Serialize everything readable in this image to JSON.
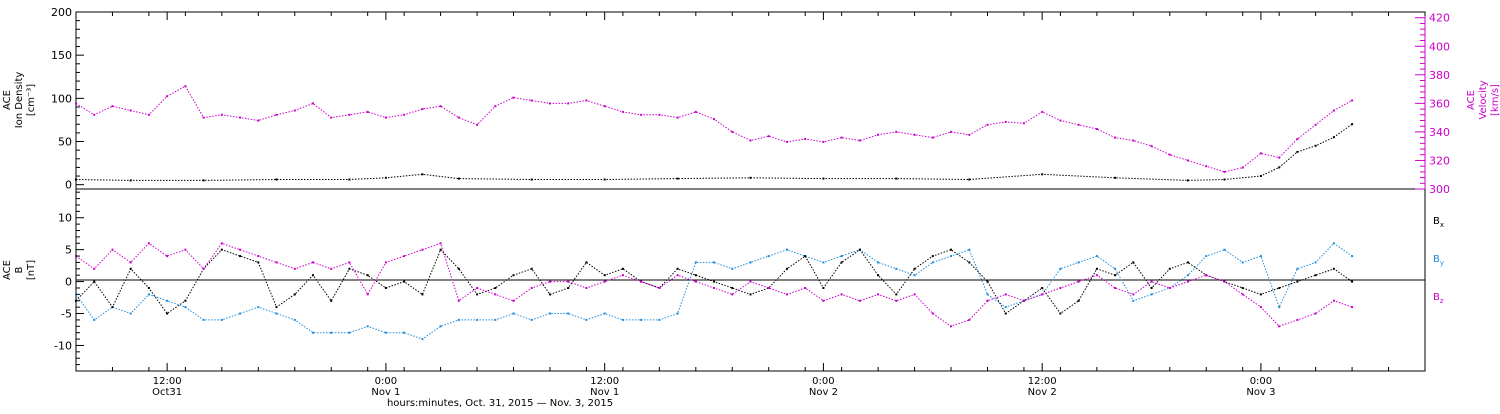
{
  "colors": {
    "density": "#000000",
    "velocity": "#cc00cc",
    "bx": "#000000",
    "by": "#1f8ddb",
    "bz": "#cc00cc",
    "axis": "#000000"
  },
  "top_panel": {
    "left_label": [
      "ACE",
      "Ion Density",
      "[cm⁻³]"
    ],
    "right_label": [
      "ACE",
      "Velocity",
      "[km/s]"
    ]
  },
  "bottom_panel": {
    "left_label": [
      "ACE",
      "B",
      "[nT]"
    ],
    "legend": [
      "Bx",
      "By",
      "Bz"
    ]
  },
  "xaxis": {
    "ticks": [
      {
        "t": 12,
        "line1": "12:00",
        "line2": "Oct31"
      },
      {
        "t": 24,
        "line1": "0:00",
        "line2": "Nov 1"
      },
      {
        "t": 36,
        "line1": "12:00",
        "line2": "Nov 1"
      },
      {
        "t": 48,
        "line1": "0:00",
        "line2": "Nov 2"
      },
      {
        "t": 60,
        "line1": "12:00",
        "line2": "Nov 2"
      },
      {
        "t": 72,
        "line1": "0:00",
        "line2": "Nov 3"
      }
    ],
    "title": "hours:minutes, Oct. 31, 2015 — Nov.  3, 2015"
  },
  "chart_data": [
    {
      "type": "scatter",
      "panel": "top",
      "x_unit": "hours since Oct 31 2015 00:00",
      "xlim": [
        7.0,
        81.0
      ],
      "left_axis": {
        "label": "ACE Ion Density [cm⁻³]",
        "ylim": [
          -5,
          200
        ],
        "ticks": [
          0,
          50,
          100,
          150,
          200
        ]
      },
      "right_axis": {
        "label": "ACE Velocity [km/s]",
        "ylim": [
          300,
          424
        ],
        "ticks": [
          300,
          320,
          340,
          360,
          380,
          400,
          420
        ]
      },
      "series": [
        {
          "name": "Ion Density",
          "axis": "left",
          "color": "#000000",
          "x": [
            7,
            10,
            14,
            18,
            22,
            24,
            26,
            28,
            32,
            36,
            40,
            44,
            48,
            52,
            56,
            60,
            64,
            68,
            70,
            72,
            73,
            74,
            75,
            76,
            77
          ],
          "y": [
            6,
            5,
            5,
            6,
            6,
            8,
            12,
            7,
            6,
            6,
            7,
            8,
            7,
            7,
            6,
            12,
            8,
            5,
            6,
            10,
            20,
            38,
            45,
            55,
            70
          ]
        },
        {
          "name": "Velocity",
          "axis": "right",
          "color": "#cc00cc",
          "x": [
            7,
            8,
            9,
            10,
            11,
            12,
            13,
            14,
            15,
            16,
            17,
            18,
            19,
            20,
            21,
            22,
            23,
            24,
            25,
            26,
            27,
            28,
            29,
            30,
            31,
            32,
            33,
            34,
            35,
            36,
            37,
            38,
            39,
            40,
            41,
            42,
            43,
            44,
            45,
            46,
            47,
            48,
            49,
            50,
            51,
            52,
            53,
            54,
            55,
            56,
            57,
            58,
            59,
            60,
            61,
            62,
            63,
            64,
            65,
            66,
            67,
            68,
            69,
            70,
            71,
            72,
            73,
            74,
            75,
            76,
            77
          ],
          "y": [
            360,
            352,
            358,
            355,
            352,
            365,
            372,
            350,
            352,
            350,
            348,
            352,
            355,
            360,
            350,
            352,
            354,
            350,
            352,
            356,
            358,
            350,
            345,
            358,
            364,
            362,
            360,
            360,
            362,
            358,
            354,
            352,
            352,
            350,
            354,
            349,
            340,
            334,
            337,
            333,
            335,
            333,
            336,
            334,
            338,
            340,
            338,
            336,
            340,
            338,
            345,
            347,
            346,
            354,
            348,
            345,
            342,
            336,
            334,
            330,
            324,
            320,
            316,
            312,
            315,
            325,
            322,
            335,
            345,
            355,
            362
          ]
        }
      ]
    },
    {
      "type": "scatter",
      "panel": "bottom",
      "x_unit": "hours since Oct 31 2015 00:00",
      "xlim": [
        7.0,
        81.0
      ],
      "ylabel": "ACE B [nT]",
      "ylim": [
        -14,
        14.5
      ],
      "yticks": [
        -10,
        -5,
        0,
        5,
        10
      ],
      "zero_line": true,
      "series": [
        {
          "name": "Bx",
          "color": "#000000",
          "x": [
            7,
            8,
            9,
            10,
            11,
            12,
            13,
            14,
            15,
            16,
            17,
            18,
            19,
            20,
            21,
            22,
            23,
            24,
            25,
            26,
            27,
            28,
            29,
            30,
            31,
            32,
            33,
            34,
            35,
            36,
            37,
            38,
            39,
            40,
            41,
            42,
            43,
            44,
            45,
            46,
            47,
            48,
            49,
            50,
            51,
            52,
            53,
            54,
            55,
            56,
            57,
            58,
            59,
            60,
            61,
            62,
            63,
            64,
            65,
            66,
            67,
            68,
            69,
            70,
            71,
            72,
            73,
            74,
            75,
            76,
            77
          ],
          "y": [
            -3,
            0,
            -4,
            2,
            -1,
            -5,
            -3,
            2,
            5,
            4,
            3,
            -4,
            -2,
            1,
            -3,
            2,
            1,
            -1,
            0,
            -2,
            5,
            2,
            -2,
            -1,
            1,
            2,
            -2,
            -1,
            3,
            1,
            2,
            0,
            -1,
            2,
            1,
            0,
            -1,
            -2,
            -1,
            2,
            4,
            -1,
            3,
            5,
            1,
            -2,
            2,
            4,
            5,
            3,
            0,
            -5,
            -3,
            -1,
            -5,
            -3,
            2,
            1,
            3,
            -1,
            2,
            3,
            1,
            0,
            -1,
            -2,
            -1,
            0,
            1,
            2,
            0
          ]
        },
        {
          "name": "By",
          "color": "#1f8ddb",
          "x": [
            7,
            8,
            9,
            10,
            11,
            12,
            13,
            14,
            15,
            16,
            17,
            18,
            19,
            20,
            21,
            22,
            23,
            24,
            25,
            26,
            27,
            28,
            29,
            30,
            31,
            32,
            33,
            34,
            35,
            36,
            37,
            38,
            39,
            40,
            41,
            42,
            43,
            44,
            45,
            46,
            47,
            48,
            49,
            50,
            51,
            52,
            53,
            54,
            55,
            56,
            57,
            58,
            59,
            60,
            61,
            62,
            63,
            64,
            65,
            66,
            67,
            68,
            69,
            70,
            71,
            72,
            73,
            74,
            75,
            76,
            77
          ],
          "y": [
            -2,
            -6,
            -4,
            -5,
            -2,
            -3,
            -4,
            -6,
            -6,
            -5,
            -4,
            -5,
            -6,
            -8,
            -8,
            -8,
            -7,
            -8,
            -8,
            -9,
            -7,
            -6,
            -6,
            -6,
            -5,
            -6,
            -5,
            -5,
            -6,
            -5,
            -6,
            -6,
            -6,
            -5,
            3,
            3,
            2,
            3,
            4,
            5,
            4,
            3,
            4,
            5,
            3,
            2,
            1,
            3,
            4,
            5,
            -2,
            -4,
            -3,
            -2,
            2,
            3,
            4,
            2,
            -3,
            -2,
            -1,
            1,
            4,
            5,
            3,
            4,
            -4,
            2,
            3,
            6,
            4
          ]
        },
        {
          "name": "Bz",
          "color": "#cc00cc",
          "x": [
            7,
            8,
            9,
            10,
            11,
            12,
            13,
            14,
            15,
            16,
            17,
            18,
            19,
            20,
            21,
            22,
            23,
            24,
            25,
            26,
            27,
            28,
            29,
            30,
            31,
            32,
            33,
            34,
            35,
            36,
            37,
            38,
            39,
            40,
            41,
            42,
            43,
            44,
            45,
            46,
            47,
            48,
            49,
            50,
            51,
            52,
            53,
            54,
            55,
            56,
            57,
            58,
            59,
            60,
            61,
            62,
            63,
            64,
            65,
            66,
            67,
            68,
            69,
            70,
            71,
            72,
            73,
            74,
            75,
            76,
            77
          ],
          "y": [
            4,
            2,
            5,
            3,
            6,
            4,
            5,
            2,
            6,
            5,
            4,
            3,
            2,
            3,
            2,
            3,
            -2,
            3,
            4,
            5,
            6,
            -3,
            -1,
            -2,
            -3,
            -1,
            0,
            0,
            -1,
            0,
            1,
            0,
            -1,
            1,
            0,
            -1,
            -2,
            0,
            -1,
            -2,
            -1,
            -3,
            -2,
            -3,
            -2,
            -3,
            -2,
            -5,
            -7,
            -6,
            -3,
            -2,
            -3,
            -2,
            -1,
            0,
            1,
            -1,
            -2,
            0,
            -1,
            0,
            1,
            0,
            -2,
            -4,
            -7,
            -6,
            -5,
            -3,
            -4
          ]
        }
      ]
    }
  ]
}
